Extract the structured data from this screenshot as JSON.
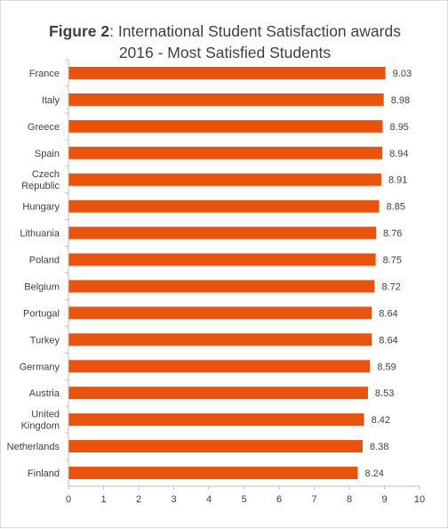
{
  "chart_data": {
    "type": "bar",
    "orientation": "horizontal",
    "title_prefix": "Figure 2",
    "title_rest": ": International Student Satisfaction awards",
    "title_line2": "2016 - Most Satisfied Students",
    "categories": [
      "France",
      "Italy",
      "Greece",
      "Spain",
      "Czech Republic",
      "Hungary",
      "Lithuania",
      "Poland",
      "Belgium",
      "Portugal",
      "Turkey",
      "Germany",
      "Austria",
      "United Kingdom",
      "Netherlands",
      "Finland"
    ],
    "category_lines": [
      [
        "France"
      ],
      [
        "Italy"
      ],
      [
        "Greece"
      ],
      [
        "Spain"
      ],
      [
        "Czech",
        "Republic"
      ],
      [
        "Hungary"
      ],
      [
        "Lithuania"
      ],
      [
        "Poland"
      ],
      [
        "Belgium"
      ],
      [
        "Portugal"
      ],
      [
        "Turkey"
      ],
      [
        "Germany"
      ],
      [
        "Austria"
      ],
      [
        "United",
        "Kingdom"
      ],
      [
        "Netherlands"
      ],
      [
        "Finland"
      ]
    ],
    "values": [
      9.03,
      8.98,
      8.95,
      8.94,
      8.91,
      8.85,
      8.76,
      8.75,
      8.72,
      8.64,
      8.64,
      8.59,
      8.53,
      8.42,
      8.38,
      8.24
    ],
    "value_labels": [
      "9.03",
      "8.98",
      "8.95",
      "8.94",
      "8.91",
      "8.85",
      "8.76",
      "8.75",
      "8.72",
      "8.64",
      "8.64",
      "8.59",
      "8.53",
      "8.42",
      "8.38",
      "8.24"
    ],
    "xlim": [
      0,
      10
    ],
    "xticks": [
      "0",
      "1",
      "2",
      "3",
      "4",
      "5",
      "6",
      "7",
      "8",
      "9",
      "10"
    ],
    "grid": false,
    "legend": "none",
    "bar_color": "#E8540E",
    "text_color": "#404040",
    "axis_color": "#bfbfbf"
  }
}
